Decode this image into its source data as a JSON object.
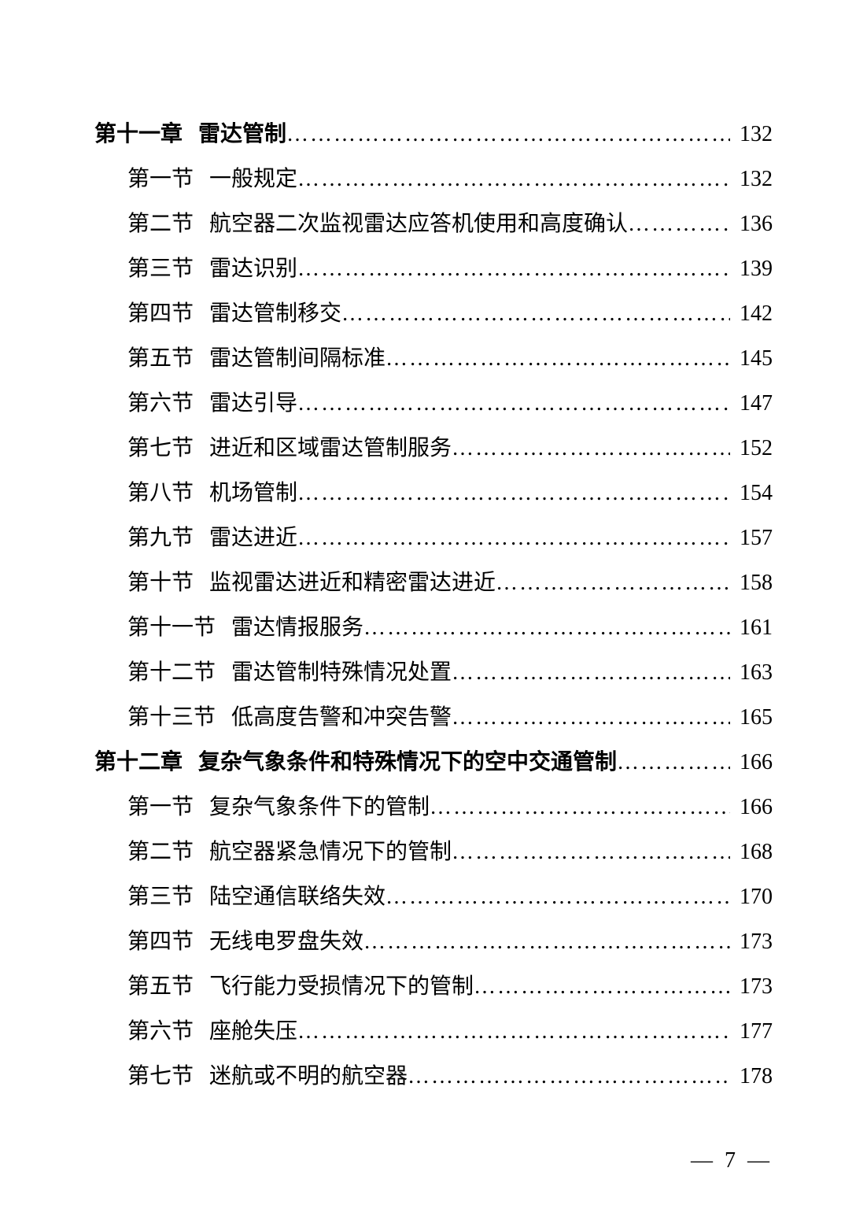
{
  "page": {
    "background": "#ffffff",
    "text_color": "#000000",
    "body_fontsize": 28,
    "footer_fontsize": 28,
    "page_number": "— 7 —"
  },
  "toc": [
    {
      "type": "chapter",
      "label": "第十一章",
      "title": "雷达管制",
      "page": "132"
    },
    {
      "type": "section",
      "label": "第一节",
      "title": "一般规定",
      "page": "132"
    },
    {
      "type": "section",
      "label": "第二节",
      "title": "航空器二次监视雷达应答机使用和高度确认",
      "page": "136"
    },
    {
      "type": "section",
      "label": "第三节",
      "title": "雷达识别",
      "page": "139"
    },
    {
      "type": "section",
      "label": "第四节",
      "title": "雷达管制移交",
      "page": "142"
    },
    {
      "type": "section",
      "label": "第五节",
      "title": "雷达管制间隔标准",
      "page": "145"
    },
    {
      "type": "section",
      "label": "第六节",
      "title": "雷达引导",
      "page": "147"
    },
    {
      "type": "section",
      "label": "第七节",
      "title": "进近和区域雷达管制服务",
      "page": "152"
    },
    {
      "type": "section",
      "label": "第八节",
      "title": "机场管制",
      "page": "154"
    },
    {
      "type": "section",
      "label": "第九节",
      "title": "雷达进近",
      "page": "157"
    },
    {
      "type": "section",
      "label": "第十节",
      "title": "监视雷达进近和精密雷达进近",
      "page": "158"
    },
    {
      "type": "section",
      "label": "第十一节",
      "title": "雷达情报服务",
      "page": "161"
    },
    {
      "type": "section",
      "label": "第十二节",
      "title": "雷达管制特殊情况处置",
      "page": "163"
    },
    {
      "type": "section",
      "label": "第十三节",
      "title": "低高度告警和冲突告警",
      "page": "165"
    },
    {
      "type": "chapter",
      "label": "第十二章",
      "title": "复杂气象条件和特殊情况下的空中交通管制",
      "page": "166"
    },
    {
      "type": "section",
      "label": "第一节",
      "title": "复杂气象条件下的管制",
      "page": "166"
    },
    {
      "type": "section",
      "label": "第二节",
      "title": "航空器紧急情况下的管制",
      "page": "168"
    },
    {
      "type": "section",
      "label": "第三节",
      "title": "陆空通信联络失效",
      "page": "170"
    },
    {
      "type": "section",
      "label": "第四节",
      "title": "无线电罗盘失效",
      "page": "173"
    },
    {
      "type": "section",
      "label": "第五节",
      "title": "飞行能力受损情况下的管制",
      "page": "173"
    },
    {
      "type": "section",
      "label": "第六节",
      "title": "座舱失压",
      "page": "177"
    },
    {
      "type": "section",
      "label": "第七节",
      "title": "迷航或不明的航空器",
      "page": "178"
    }
  ]
}
